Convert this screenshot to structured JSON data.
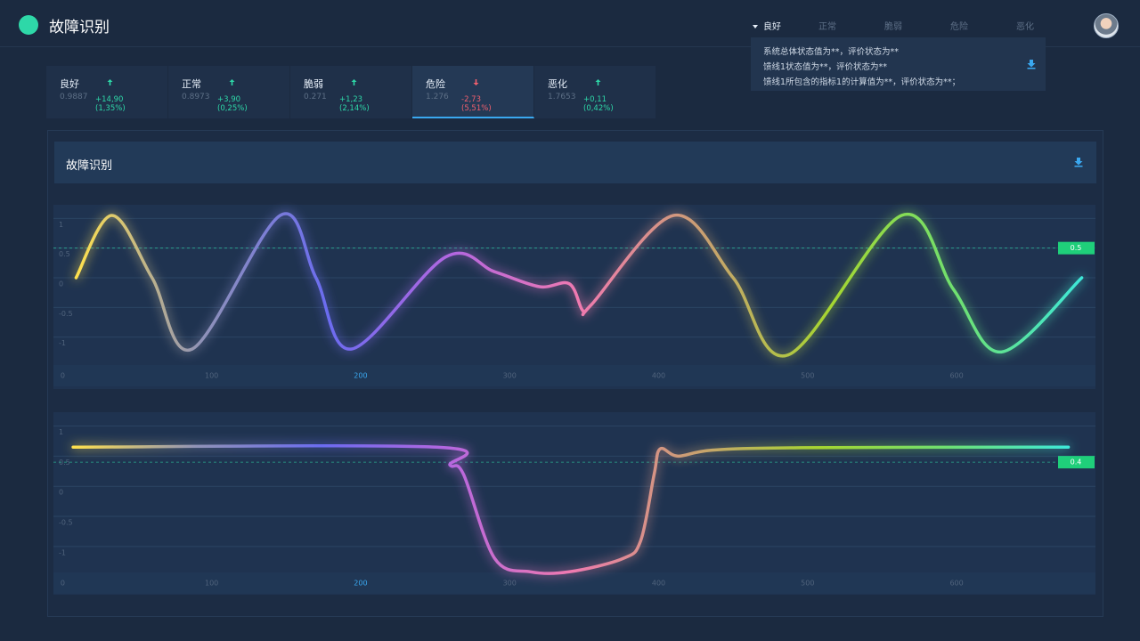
{
  "header": {
    "title": "故障识别"
  },
  "status_tabs": {
    "active": 0,
    "items": [
      "良好",
      "正常",
      "脆弱",
      "危险",
      "恶化"
    ]
  },
  "popup": {
    "lines": [
      "系统总体状态值为**，评价状态为**",
      "馈线1状态值为**，评价状态为**",
      "馈线1所包含的指标1的计算值为**，评价状态为**；"
    ]
  },
  "cards": {
    "active": 3,
    "items": [
      {
        "name": "良好",
        "value": "0.9887",
        "change": "+14,90",
        "percent": "(1,35%)",
        "trend": "up"
      },
      {
        "name": "正常",
        "value": "0.8973",
        "change": "+3,90",
        "percent": "(0,25%)",
        "trend": "up"
      },
      {
        "name": "脆弱",
        "value": "0.271",
        "change": "+1,23",
        "percent": "(2,14%)",
        "trend": "up"
      },
      {
        "name": "危险",
        "value": "1.276",
        "change": "-2,73",
        "percent": "(5,51%)",
        "trend": "down"
      },
      {
        "name": "恶化",
        "value": "1.7653",
        "change": "+0,11",
        "percent": "(0,42%)",
        "trend": "up"
      }
    ]
  },
  "panel": {
    "title": "故障识别"
  },
  "charts": [
    {
      "type": "line",
      "colors": [
        "#ffe14d",
        "#8f92b8",
        "#6b6cf0",
        "#b466e0",
        "#f07ab0",
        "#c9a070",
        "#a6d630",
        "#6fe070",
        "#3ee8d8"
      ],
      "x": [
        9,
        33,
        60,
        87,
        146,
        170,
        194,
        257,
        290,
        320,
        340,
        349,
        355,
        410,
        450,
        487,
        563,
        598,
        630,
        684
      ],
      "values": [
        0.0,
        1.05,
        0.0,
        -1.2,
        1.05,
        0.0,
        -1.2,
        0.35,
        0.1,
        -0.15,
        -0.1,
        -0.55,
        -0.45,
        1.05,
        0.0,
        -1.3,
        1.05,
        -0.2,
        -1.25,
        0.0
      ],
      "xlim": [
        -5,
        692
      ],
      "ylim": [
        -1.5,
        1.2
      ],
      "xticks": [
        0,
        100,
        200,
        300,
        400,
        500,
        600
      ],
      "yticks": [
        1,
        0.5,
        0,
        -0.5,
        -1
      ],
      "threshold": {
        "value": 0.5,
        "label": "0.5"
      }
    },
    {
      "type": "line",
      "colors": [
        "#ffe14d",
        "#8f92b8",
        "#6b6cf0",
        "#b466e0",
        "#f07ab0",
        "#c9a070",
        "#a6d630",
        "#6fe070",
        "#3ee8d8"
      ],
      "x": [
        7,
        251,
        260,
        269,
        290,
        314,
        340,
        376,
        388,
        397,
        401,
        413,
        436,
        496,
        675
      ],
      "values": [
        0.65,
        0.65,
        0.35,
        0.2,
        -1.2,
        -1.42,
        -1.42,
        -1.2,
        -0.9,
        0.2,
        0.62,
        0.5,
        0.6,
        0.64,
        0.65
      ],
      "xlim": [
        -5,
        692
      ],
      "ylim": [
        -1.8,
        1.2
      ],
      "xticks": [
        0,
        100,
        200,
        300,
        400,
        500,
        600
      ],
      "yticks": [
        1,
        0.5,
        0,
        -0.5,
        -1
      ],
      "threshold": {
        "value": 0.4,
        "label": "0.4"
      }
    }
  ]
}
